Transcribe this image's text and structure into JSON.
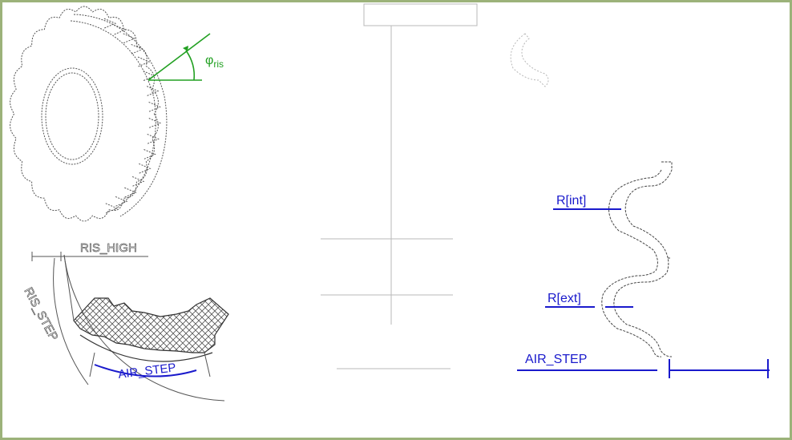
{
  "labels": {
    "phi_symbol": "φ",
    "phi_subscript": "ris",
    "ris_high": "RIS_HIGH",
    "ris_step": "RIS_STEP",
    "air_step_arc": "AIR_STEP",
    "r_int": "R[int]",
    "r_ext": "R[ext]",
    "air_step_linear": "AIR_STEP"
  },
  "colors": {
    "border": "#9cb27a",
    "green": "#22a022",
    "blue": "#1a1acc",
    "line": "#444444",
    "faint": "#b8b8b8"
  }
}
